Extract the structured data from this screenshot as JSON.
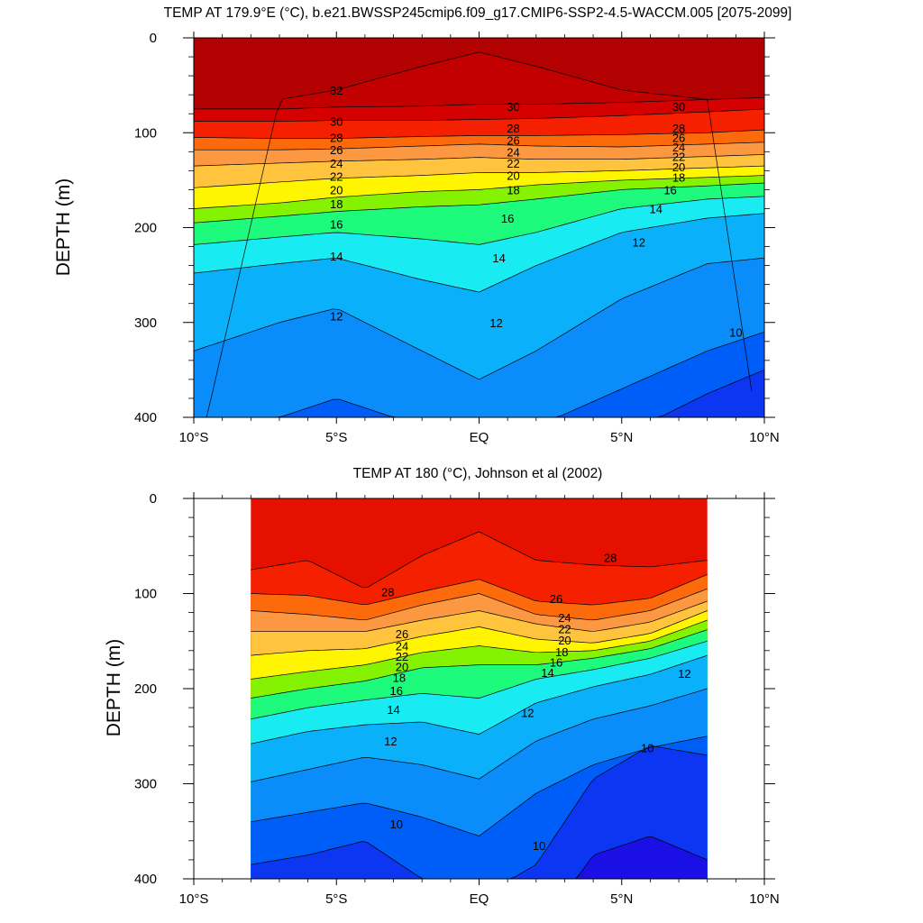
{
  "chart_data": [
    {
      "type": "contour",
      "title": "TEMP AT 179.9°E (°C), b.e21.BWSSP245cmip6.f09_g17.CMIP6-SSP2-4.5-WACCM.005 [2075-2099]",
      "ylabel": "DEPTH (m)",
      "xlabel": "",
      "xlim": [
        -10,
        10
      ],
      "ylim": [
        400,
        0
      ],
      "x_ticks": [
        -10,
        -5,
        0,
        5,
        10
      ],
      "x_tick_labels": [
        "10°S",
        "5°S",
        "EQ",
        "5°N",
        "10°N"
      ],
      "y_ticks": [
        0,
        100,
        200,
        300,
        400
      ],
      "y_tick_labels": [
        "0",
        "100",
        "200",
        "300",
        "400"
      ],
      "data_extent_lat": [
        -10,
        10
      ],
      "contour_interval": 1,
      "isotherm_depths": {
        "lat": [
          -10,
          -7,
          -5,
          -2,
          0,
          2,
          5,
          8,
          10
        ],
        "levels": [
          {
            "t": 32,
            "depth": [
              null,
              65,
              55,
              30,
              15,
              30,
              55,
              65,
              null
            ]
          },
          {
            "t": 31,
            "depth": [
              75,
              75,
              73,
              72,
              70,
              70,
              68,
              65,
              63
            ]
          },
          {
            "t": 30,
            "depth": [
              88,
              88,
              87,
              87,
              86,
              85,
              82,
              78,
              75
            ]
          },
          {
            "t": 28,
            "depth": [
              105,
              106,
              106,
              104,
              103,
              103,
              102,
              100,
              97
            ]
          },
          {
            "t": 26,
            "depth": [
              118,
              118,
              117,
              114,
              112,
              114,
              115,
              112,
              110
            ]
          },
          {
            "t": 24,
            "depth": [
              135,
              132,
              130,
              128,
              126,
              128,
              128,
              125,
              123
            ]
          },
          {
            "t": 22,
            "depth": [
              158,
              152,
              148,
              145,
              142,
              142,
              140,
              137,
              135
            ]
          },
          {
            "t": 20,
            "depth": [
              180,
              174,
              168,
              162,
              160,
              155,
              150,
              147,
              145
            ]
          },
          {
            "t": 18,
            "depth": [
              195,
              188,
              183,
              178,
              176,
              170,
              160,
              156,
              153
            ]
          },
          {
            "t": 16,
            "depth": [
              218,
              210,
              205,
              212,
              218,
              205,
              180,
              170,
              167
            ]
          },
          {
            "t": 14,
            "depth": [
              248,
              238,
              232,
              255,
              268,
              240,
              205,
              190,
              185
            ]
          },
          {
            "t": 12,
            "depth": [
              330,
              300,
              285,
              330,
              360,
              330,
              275,
              238,
              232
            ]
          },
          {
            "t": 11,
            "depth": [
              400,
              400,
              380,
              410,
              430,
              410,
              370,
              330,
              310
            ]
          },
          {
            "t": 10,
            "depth": [
              null,
              null,
              null,
              null,
              null,
              null,
              420,
              375,
              350
            ]
          }
        ]
      },
      "contour_labels": [
        {
          "text": "32",
          "lat": -5.0,
          "depth": 55
        },
        {
          "text": "30",
          "lat": -5.0,
          "depth": 88
        },
        {
          "text": "28",
          "lat": -5.0,
          "depth": 105
        },
        {
          "text": "26",
          "lat": -5.0,
          "depth": 118
        },
        {
          "text": "24",
          "lat": -5.0,
          "depth": 132
        },
        {
          "text": "22",
          "lat": -5.0,
          "depth": 146
        },
        {
          "text": "20",
          "lat": -5.0,
          "depth": 160
        },
        {
          "text": "18",
          "lat": -5.0,
          "depth": 175
        },
        {
          "text": "16",
          "lat": -5.0,
          "depth": 196
        },
        {
          "text": "14",
          "lat": -5.0,
          "depth": 230
        },
        {
          "text": "12",
          "lat": -5.0,
          "depth": 293
        },
        {
          "text": "30",
          "lat": 1.2,
          "depth": 72
        },
        {
          "text": "28",
          "lat": 1.2,
          "depth": 95
        },
        {
          "text": "26",
          "lat": 1.2,
          "depth": 108
        },
        {
          "text": "24",
          "lat": 1.2,
          "depth": 120
        },
        {
          "text": "22",
          "lat": 1.2,
          "depth": 132
        },
        {
          "text": "20",
          "lat": 1.2,
          "depth": 145
        },
        {
          "text": "18",
          "lat": 1.2,
          "depth": 160
        },
        {
          "text": "16",
          "lat": 1.0,
          "depth": 190
        },
        {
          "text": "14",
          "lat": 0.7,
          "depth": 232
        },
        {
          "text": "12",
          "lat": 0.6,
          "depth": 300
        },
        {
          "text": "30",
          "lat": 7.0,
          "depth": 72
        },
        {
          "text": "28",
          "lat": 7.0,
          "depth": 95
        },
        {
          "text": "26",
          "lat": 7.0,
          "depth": 105
        },
        {
          "text": "24",
          "lat": 7.0,
          "depth": 115
        },
        {
          "text": "22",
          "lat": 7.0,
          "depth": 125
        },
        {
          "text": "20",
          "lat": 7.0,
          "depth": 136
        },
        {
          "text": "18",
          "lat": 7.0,
          "depth": 147
        },
        {
          "text": "16",
          "lat": 6.7,
          "depth": 160
        },
        {
          "text": "14",
          "lat": 6.2,
          "depth": 180
        },
        {
          "text": "12",
          "lat": 5.6,
          "depth": 215
        },
        {
          "text": "10",
          "lat": 9.0,
          "depth": 310
        }
      ]
    },
    {
      "type": "contour",
      "title": "TEMP AT 180 (°C), Johnson et al (2002)",
      "ylabel": "DEPTH (m)",
      "xlabel": "",
      "xlim": [
        -10,
        10
      ],
      "ylim": [
        400,
        0
      ],
      "x_ticks": [
        -10,
        -5,
        0,
        5,
        10
      ],
      "x_tick_labels": [
        "10°S",
        "5°S",
        "EQ",
        "5°N",
        "10°N"
      ],
      "y_ticks": [
        0,
        100,
        200,
        300,
        400
      ],
      "y_tick_labels": [
        "0",
        "100",
        "200",
        "300",
        "400"
      ],
      "data_extent_lat": [
        -8,
        8
      ],
      "contour_interval": 1,
      "isotherm_depths": {
        "lat": [
          -8,
          -6,
          -4,
          -2,
          0,
          2,
          4,
          6,
          8
        ],
        "levels": [
          {
            "t": 29,
            "depth": [
              75,
              65,
              95,
              60,
              35,
              65,
              70,
              72,
              65
            ]
          },
          {
            "t": 28,
            "depth": [
              100,
              102,
              112,
              98,
              85,
              108,
              112,
              105,
              80
            ]
          },
          {
            "t": 26,
            "depth": [
              118,
              122,
              128,
              112,
              100,
              122,
              128,
              118,
              95
            ]
          },
          {
            "t": 24,
            "depth": [
              140,
              140,
              140,
              128,
              118,
              132,
              140,
              130,
              108
            ]
          },
          {
            "t": 22,
            "depth": [
              165,
              160,
              158,
              145,
              135,
              148,
              152,
              142,
              118
            ]
          },
          {
            "t": 20,
            "depth": [
              190,
              182,
              175,
              162,
              155,
              162,
              160,
              150,
              128
            ]
          },
          {
            "t": 18,
            "depth": [
              210,
              200,
              192,
              178,
              175,
              175,
              168,
              158,
              138
            ]
          },
          {
            "t": 16,
            "depth": [
              232,
              220,
              212,
              205,
              210,
              190,
              180,
              168,
              150
            ]
          },
          {
            "t": 14,
            "depth": [
              258,
              245,
              238,
              235,
              248,
              215,
              198,
              185,
              165
            ]
          },
          {
            "t": 12,
            "depth": [
              298,
              285,
              272,
              280,
              295,
              255,
              232,
              218,
              200
            ]
          },
          {
            "t": 11,
            "depth": [
              340,
              330,
              320,
              335,
              355,
              310,
              280,
              262,
              250
            ]
          },
          {
            "t": 10,
            "depth": [
              385,
              375,
              360,
              400,
              420,
              385,
              295,
              260,
              270
            ]
          },
          {
            "t": 9,
            "depth": [
              null,
              null,
              null,
              null,
              null,
              null,
              375,
              355,
              380
            ]
          }
        ]
      },
      "contour_labels": [
        {
          "text": "28",
          "lat": -3.2,
          "depth": 98
        },
        {
          "text": "26",
          "lat": -2.7,
          "depth": 142
        },
        {
          "text": "24",
          "lat": -2.7,
          "depth": 155
        },
        {
          "text": "22",
          "lat": -2.7,
          "depth": 166
        },
        {
          "text": "20",
          "lat": -2.7,
          "depth": 177
        },
        {
          "text": "18",
          "lat": -2.8,
          "depth": 188
        },
        {
          "text": "16",
          "lat": -2.9,
          "depth": 202
        },
        {
          "text": "14",
          "lat": -3.0,
          "depth": 222
        },
        {
          "text": "12",
          "lat": -3.1,
          "depth": 255
        },
        {
          "text": "10",
          "lat": -2.9,
          "depth": 342
        },
        {
          "text": "28",
          "lat": 4.6,
          "depth": 62
        },
        {
          "text": "26",
          "lat": 2.7,
          "depth": 105
        },
        {
          "text": "24",
          "lat": 3.0,
          "depth": 125
        },
        {
          "text": "22",
          "lat": 3.0,
          "depth": 137
        },
        {
          "text": "20",
          "lat": 3.0,
          "depth": 149
        },
        {
          "text": "18",
          "lat": 2.9,
          "depth": 161
        },
        {
          "text": "16",
          "lat": 2.7,
          "depth": 172
        },
        {
          "text": "14",
          "lat": 2.4,
          "depth": 183
        },
        {
          "text": "12",
          "lat": 1.7,
          "depth": 225
        },
        {
          "text": "12",
          "lat": 7.2,
          "depth": 184
        },
        {
          "text": "10",
          "lat": 5.9,
          "depth": 262
        },
        {
          "text": "10",
          "lat": 2.1,
          "depth": 365
        }
      ]
    }
  ],
  "colors": {
    "palette": [
      "#1a10e6",
      "#0d36f2",
      "#005ef8",
      "#0a8dfa",
      "#0bb0fa",
      "#00d2fc",
      "#19ebf2",
      "#5af5ce",
      "#1efa7c",
      "#00e800",
      "#84f200",
      "#d6f700",
      "#fff500",
      "#ffdd26",
      "#ffc33e",
      "#fdb05a",
      "#fc9841",
      "#fc8b1b",
      "#fc6a0c",
      "#ff4a00",
      "#f42000",
      "#e61000",
      "#d50000",
      "#c30000",
      "#b30000"
    ],
    "temp_range": [
      9,
      33
    ]
  }
}
